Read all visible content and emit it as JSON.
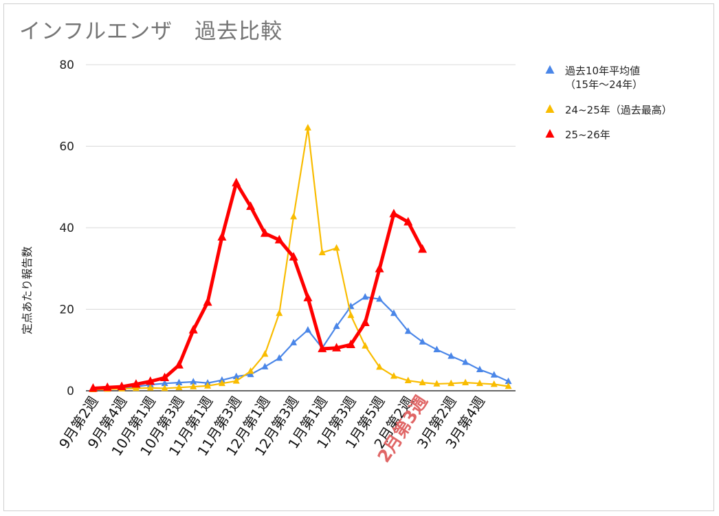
{
  "chart_data": {
    "type": "line",
    "title": "インフルエンザ　過去比較",
    "ylabel": "定点あたり報告数",
    "xlabel": "",
    "ylim": [
      0,
      80
    ],
    "yticks": [
      0,
      20,
      40,
      60,
      80
    ],
    "grid": true,
    "legend_position": "right",
    "x_labels": [
      {
        "label": "9月第2週",
        "index": 0
      },
      {
        "label": "9月第4週",
        "index": 2
      },
      {
        "label": "10月第1週",
        "index": 4
      },
      {
        "label": "10月第3週",
        "index": 6
      },
      {
        "label": "11月第1週",
        "index": 8
      },
      {
        "label": "11月第3週",
        "index": 10
      },
      {
        "label": "12月第1週",
        "index": 12
      },
      {
        "label": "12月第3週",
        "index": 14
      },
      {
        "label": "1月第1週",
        "index": 16
      },
      {
        "label": "1月第3週",
        "index": 18
      },
      {
        "label": "1月第5週",
        "index": 20
      },
      {
        "label": "2月第2週",
        "index": 22
      },
      {
        "label": "2月第3週",
        "index": 23,
        "highlight": true
      },
      {
        "label": "3月第2週",
        "index": 25
      },
      {
        "label": "3月第4週",
        "index": 27
      }
    ],
    "point_count": 30,
    "series": [
      {
        "name": "過去10年平均値\n（15年〜24年）",
        "color": "#4a86e8",
        "bold": false,
        "values": [
          0.4,
          0.5,
          0.7,
          1.0,
          1.5,
          1.8,
          2.0,
          2.2,
          1.9,
          2.6,
          3.5,
          4.0,
          5.9,
          8.0,
          11.8,
          14.9,
          10.5,
          15.8,
          20.7,
          23.0,
          22.5,
          19.0,
          14.6,
          12.0,
          10.1,
          8.5,
          7.0,
          5.2,
          3.9,
          2.3
        ]
      },
      {
        "name": "24~25年（過去最高）",
        "color": "#f9bc00",
        "bold": false,
        "values": [
          0.3,
          0.4,
          0.5,
          0.6,
          0.7,
          0.6,
          0.8,
          1.0,
          1.2,
          1.8,
          2.4,
          4.8,
          9.0,
          19.0,
          42.7,
          64.5,
          33.9,
          35.0,
          18.5,
          11.0,
          5.8,
          3.6,
          2.5,
          2.0,
          1.7,
          1.8,
          2.0,
          1.8,
          1.6,
          1.1
        ]
      },
      {
        "name": "25~26年",
        "color": "#ff0000",
        "bold": true,
        "values": [
          0.6,
          0.8,
          1.0,
          1.6,
          2.3,
          3.2,
          6.3,
          14.9,
          21.7,
          37.7,
          51.0,
          45.2,
          38.6,
          37.0,
          32.8,
          22.8,
          10.3,
          10.5,
          11.3,
          16.7,
          29.9,
          43.4,
          41.4,
          34.7,
          null,
          null,
          null,
          null,
          null,
          null
        ]
      }
    ]
  }
}
